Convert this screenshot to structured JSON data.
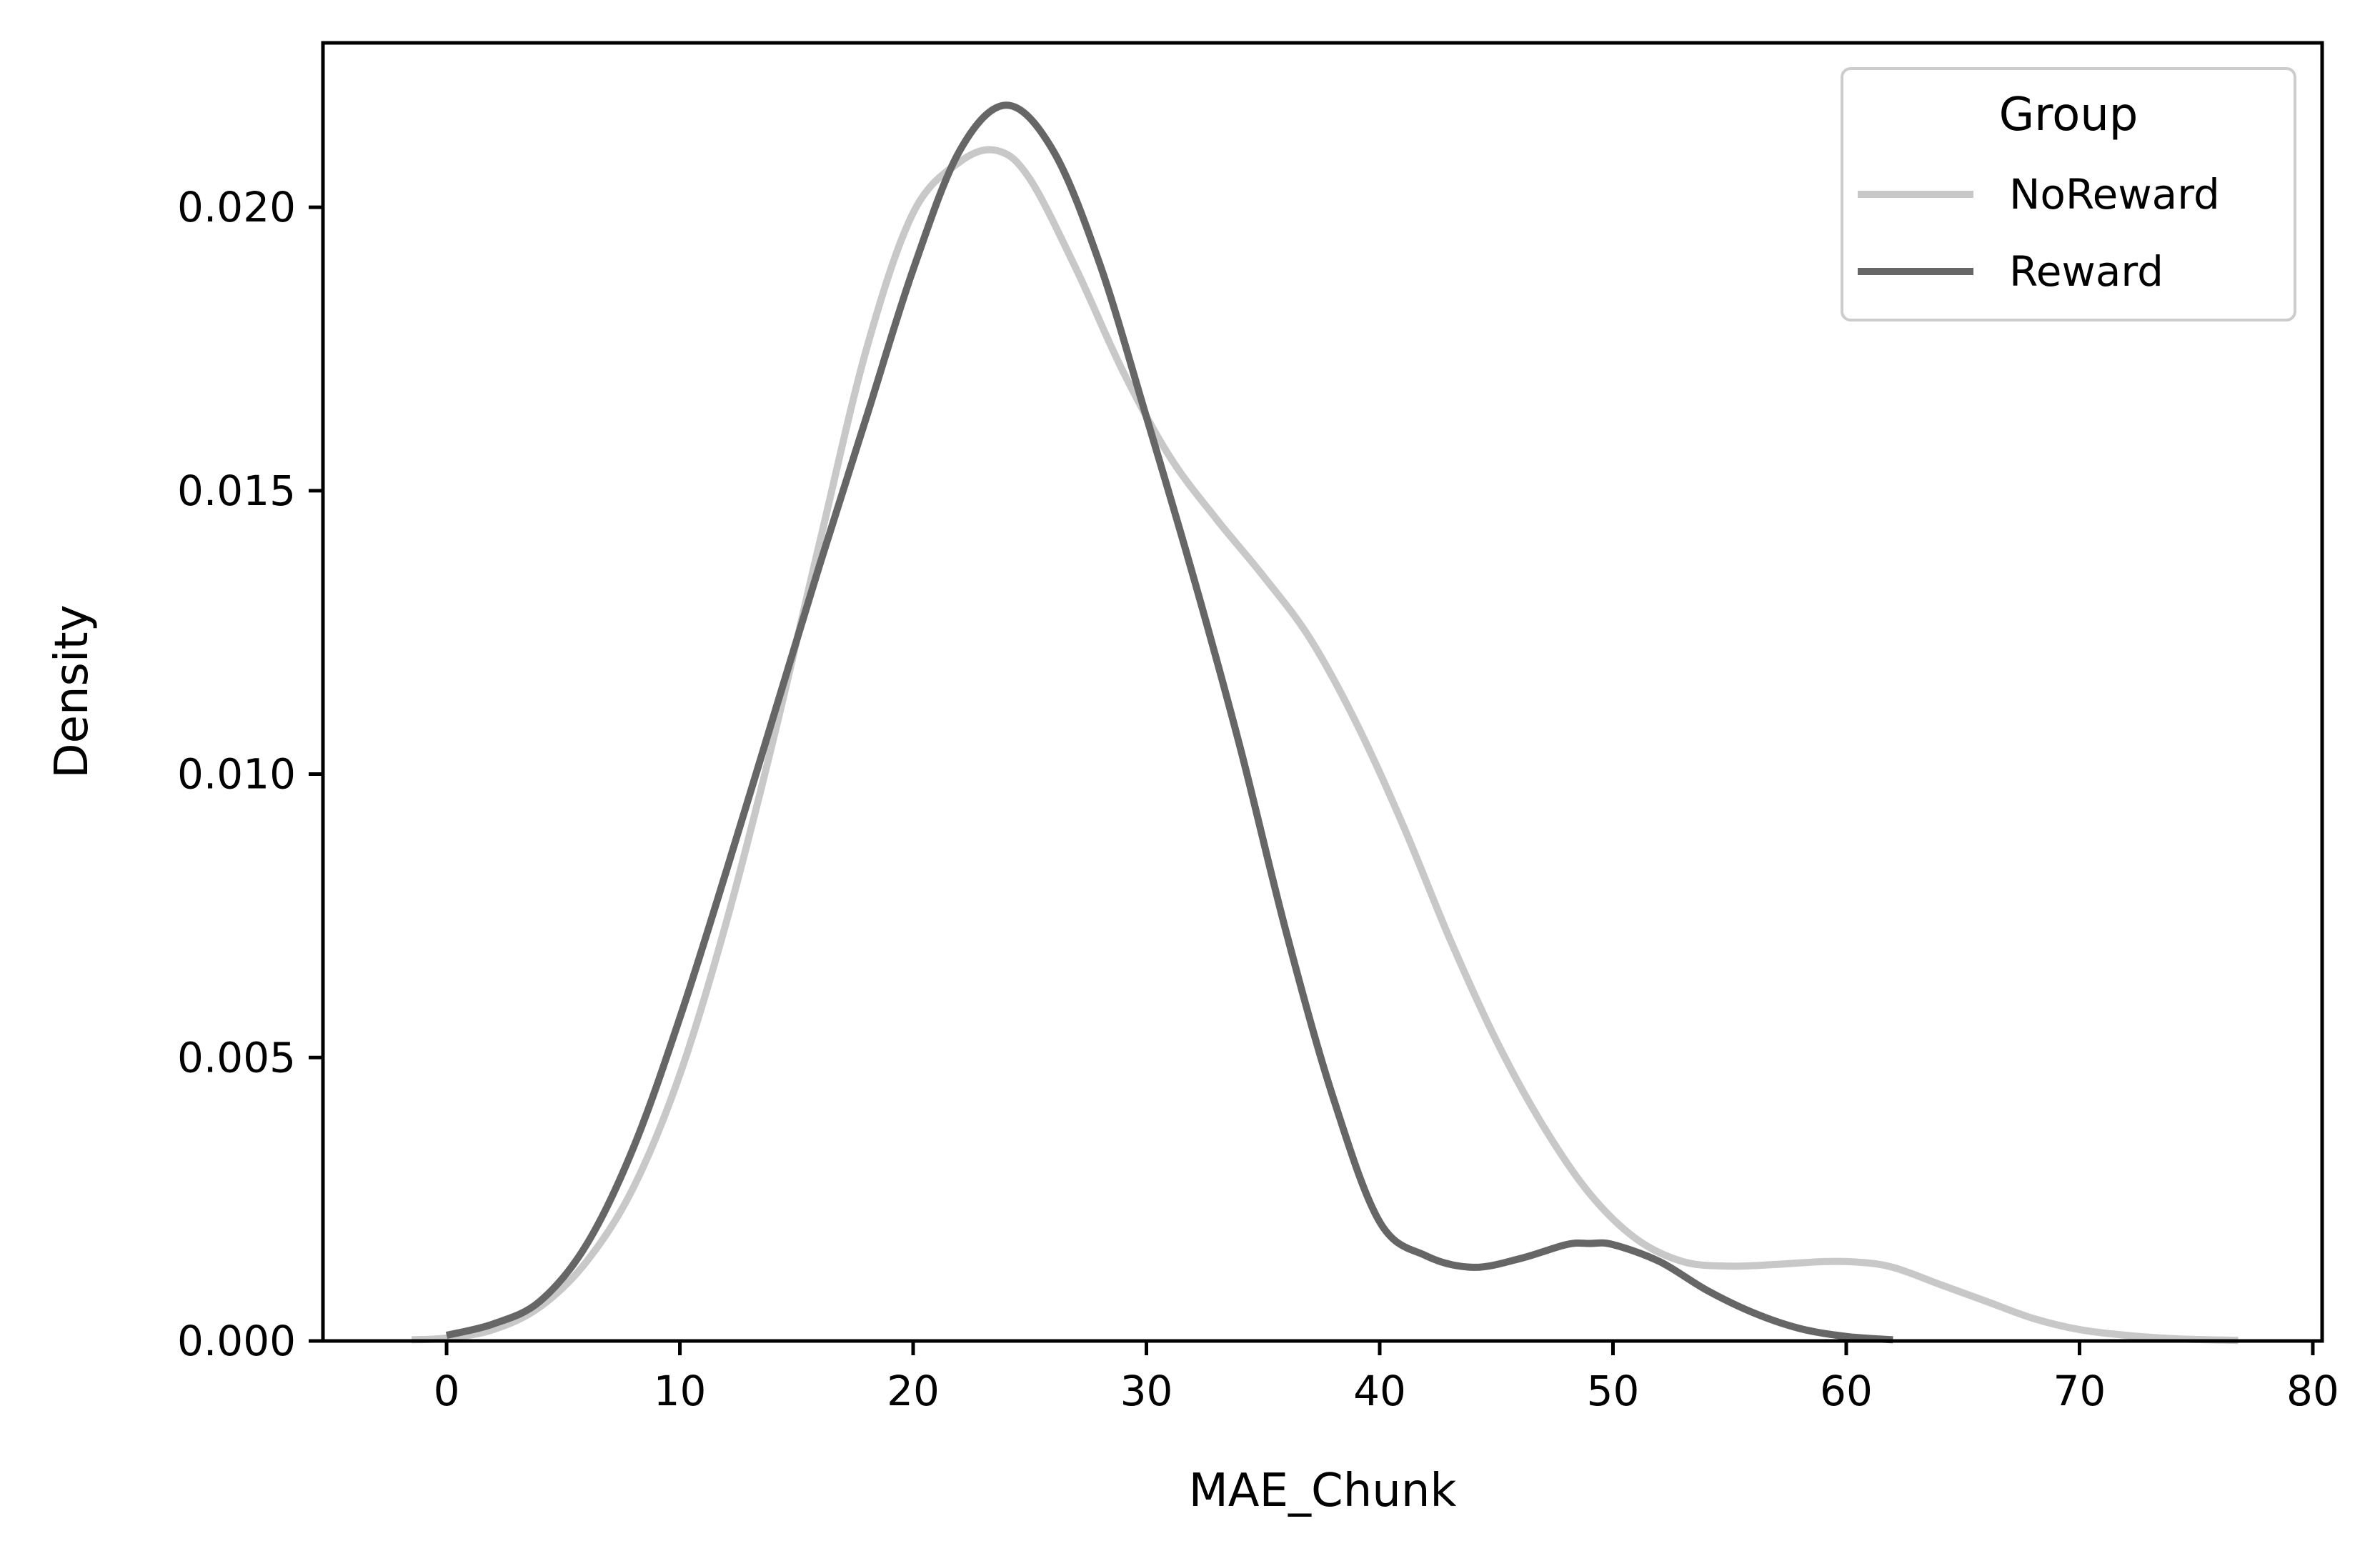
{
  "chart_data": {
    "type": "line",
    "title": "",
    "xlabel": "MAE_Chunk",
    "ylabel": "Density",
    "xlim": [
      -5.3,
      80.4
    ],
    "ylim": [
      0,
      0.0229
    ],
    "xticks": [
      0,
      10,
      20,
      30,
      40,
      50,
      60,
      70,
      80
    ],
    "xtick_labels": [
      "0",
      "10",
      "20",
      "30",
      "40",
      "50",
      "60",
      "70",
      "80"
    ],
    "yticks": [
      0,
      0.005,
      0.01,
      0.015,
      0.02
    ],
    "ytick_labels": [
      "0.000",
      "0.005",
      "0.010",
      "0.015",
      "0.020"
    ],
    "grid": false,
    "legend": {
      "title": "Group",
      "placement": "top-right"
    },
    "series": [
      {
        "name": "NoReward",
        "color": "#c8c8c8",
        "x": [
          -1.5,
          0,
          2,
          4,
          6,
          8,
          10,
          12,
          14,
          16,
          18,
          20,
          22,
          23.6,
          25,
          27,
          29,
          31,
          33,
          35,
          37,
          39,
          41,
          43,
          45,
          47,
          49,
          51,
          53,
          55,
          57,
          59,
          60.5,
          62,
          64,
          66,
          68,
          70,
          72,
          74,
          76.8
        ],
        "y": [
          2e-05,
          5e-05,
          0.0002,
          0.0006,
          0.0014,
          0.0027,
          0.0047,
          0.0074,
          0.0106,
          0.0141,
          0.0175,
          0.0199,
          0.0208,
          0.021,
          0.0205,
          0.0189,
          0.0171,
          0.0156,
          0.0145,
          0.0135,
          0.0124,
          0.0109,
          0.0091,
          0.0071,
          0.0053,
          0.0038,
          0.0026,
          0.0018,
          0.0014,
          0.00132,
          0.00135,
          0.0014,
          0.00139,
          0.0013,
          0.001,
          0.0007,
          0.0004,
          0.0002,
          0.0001,
          4e-05,
          1e-05
        ]
      },
      {
        "name": "Reward",
        "color": "#666666",
        "x": [
          0,
          2,
          4,
          6,
          8,
          10,
          12,
          14,
          16,
          18,
          20,
          22,
          24,
          26,
          28,
          30,
          32,
          34,
          36,
          38,
          40,
          42,
          44,
          46,
          48,
          49,
          50,
          52,
          54,
          56,
          58,
          60,
          62
        ],
        "y": [
          0.0001,
          0.0003,
          0.0007,
          0.0017,
          0.0034,
          0.0057,
          0.0083,
          0.011,
          0.0137,
          0.0163,
          0.0189,
          0.021,
          0.0218,
          0.021,
          0.019,
          0.0163,
          0.0135,
          0.0105,
          0.0072,
          0.0043,
          0.0021,
          0.0015,
          0.0013,
          0.00145,
          0.0017,
          0.00172,
          0.0017,
          0.0014,
          0.0009,
          0.0005,
          0.00022,
          8e-05,
          2e-05
        ]
      }
    ]
  }
}
